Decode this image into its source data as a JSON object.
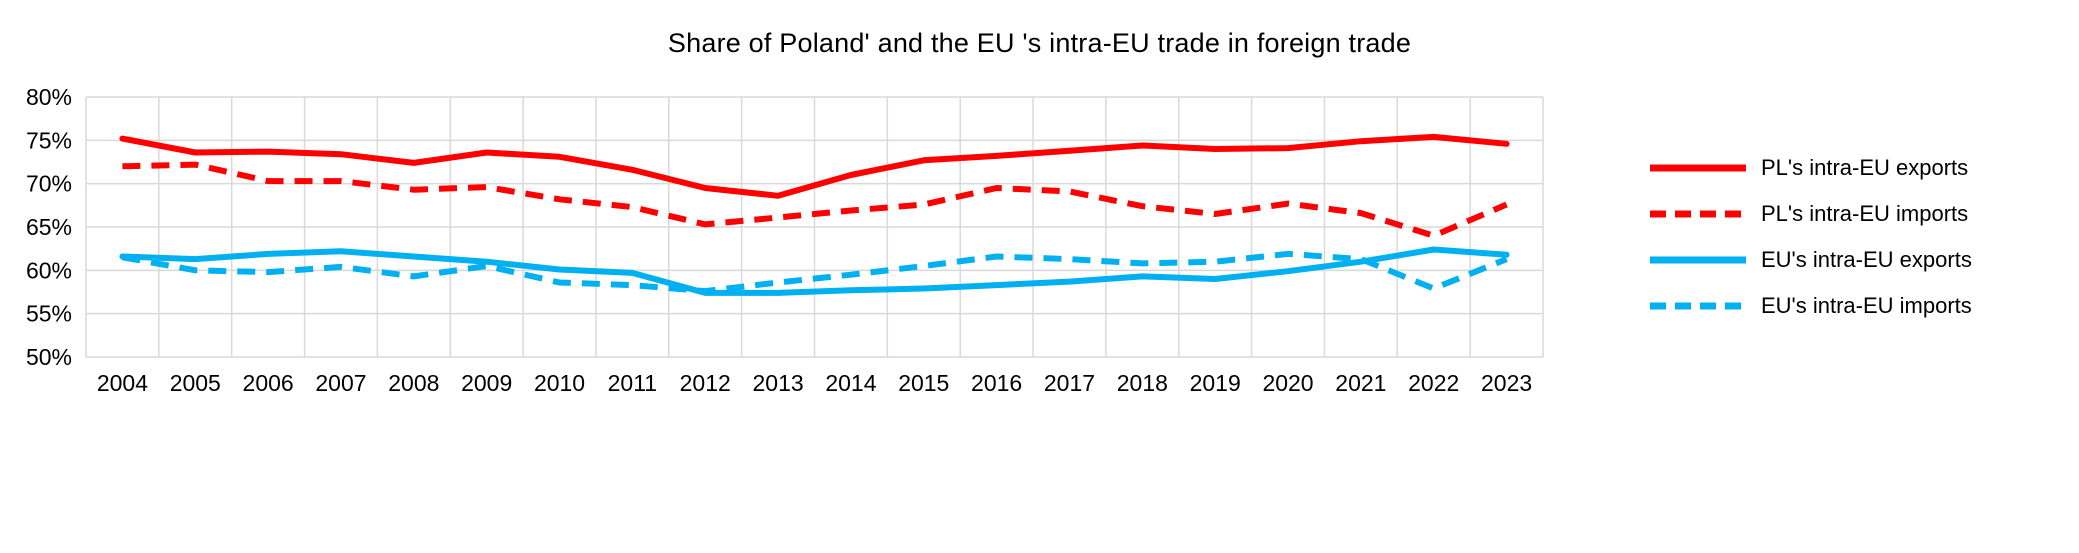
{
  "chart_data": {
    "type": "line",
    "title": "Share of Poland' and the EU 's intra-EU trade in foreign trade",
    "xlabel": "",
    "ylabel": "",
    "ylim": [
      50,
      80
    ],
    "grid": true,
    "legend_position": "right",
    "y_ticks": [
      80,
      75,
      70,
      65,
      60,
      55,
      50
    ],
    "y_tick_labels": [
      "80%",
      "75%",
      "70%",
      "65%",
      "60%",
      "55%",
      "50%"
    ],
    "x": [
      "2004",
      "2005",
      "2006",
      "2007",
      "2008",
      "2009",
      "2010",
      "2011",
      "2012",
      "2013",
      "2014",
      "2015",
      "2016",
      "2017",
      "2018",
      "2019",
      "2020",
      "2021",
      "2022",
      "2023"
    ],
    "series": [
      {
        "name": "PL's intra-EU exports",
        "color": "#ff0000",
        "style": "solid",
        "values": [
          75.2,
          73.6,
          73.7,
          73.4,
          72.4,
          73.6,
          73.1,
          71.6,
          69.5,
          68.6,
          71.0,
          72.7,
          73.2,
          73.8,
          74.4,
          74.0,
          74.1,
          74.9,
          75.4,
          74.6
        ]
      },
      {
        "name": "PL's intra-EU imports",
        "color": "#ff0000",
        "style": "dashed",
        "values": [
          72.0,
          72.2,
          70.3,
          70.3,
          69.3,
          69.6,
          68.2,
          67.3,
          65.3,
          66.1,
          66.9,
          67.6,
          69.5,
          69.1,
          67.4,
          66.5,
          67.7,
          66.6,
          64.0,
          67.6
        ]
      },
      {
        "name": "EU's intra-EU exports",
        "color": "#00b0f0",
        "style": "solid",
        "values": [
          61.6,
          61.3,
          61.9,
          62.2,
          61.6,
          61.0,
          60.1,
          59.7,
          57.4,
          57.4,
          57.7,
          57.9,
          58.3,
          58.7,
          59.3,
          59.0,
          59.9,
          61.0,
          62.4,
          61.8
        ]
      },
      {
        "name": "EU's intra-EU imports",
        "color": "#00b0f0",
        "style": "dashed",
        "values": [
          61.5,
          60.0,
          59.8,
          60.4,
          59.3,
          60.5,
          58.6,
          58.3,
          57.6,
          58.6,
          59.5,
          60.5,
          61.6,
          61.3,
          60.8,
          61.0,
          61.9,
          61.3,
          57.9,
          61.3
        ]
      }
    ],
    "gridline_color": "#d9d9d9"
  }
}
